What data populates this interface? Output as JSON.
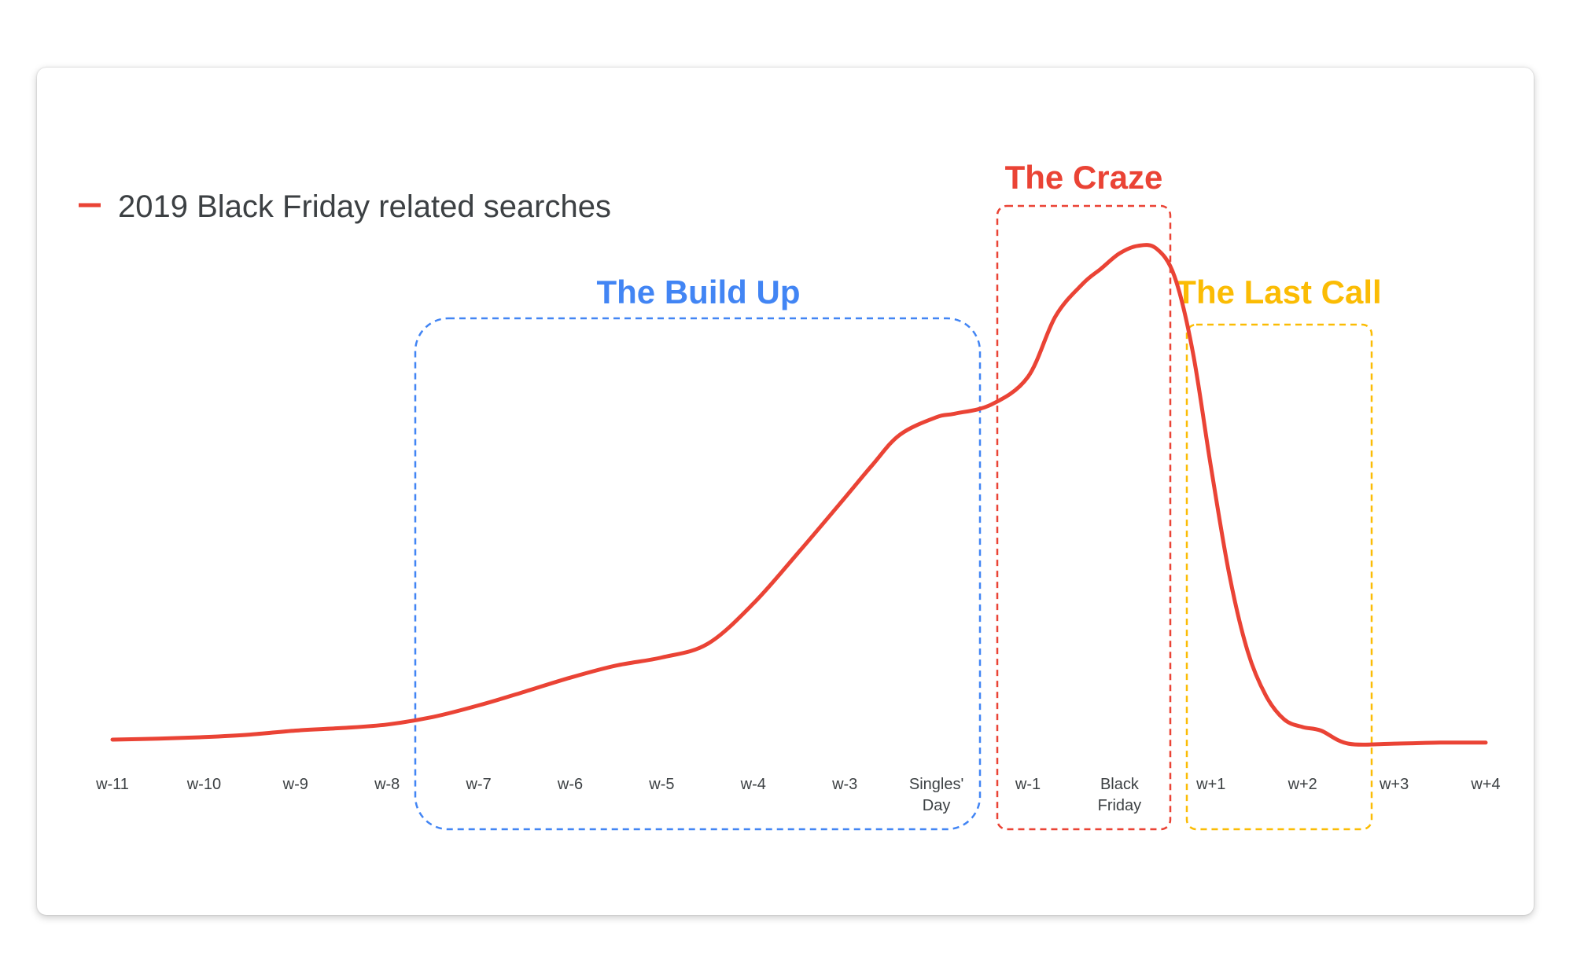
{
  "chart_data": {
    "type": "line",
    "title": "",
    "xlabel": "",
    "ylabel": "",
    "legend": {
      "placement": "top-left",
      "entries": [
        {
          "name": "2019 Black Friday related searches",
          "color": "#ea4335"
        }
      ]
    },
    "categories": [
      [
        "w-11"
      ],
      [
        "w-10"
      ],
      [
        "w-9"
      ],
      [
        "w-8"
      ],
      [
        "w-7"
      ],
      [
        "w-6"
      ],
      [
        "w-5"
      ],
      [
        "w-4"
      ],
      [
        "w-3"
      ],
      [
        "Singles'",
        "Day"
      ],
      [
        "w-1"
      ],
      [
        "Black",
        "Friday"
      ],
      [
        "w+1"
      ],
      [
        "w+2"
      ],
      [
        "w+3"
      ],
      [
        "w+4"
      ]
    ],
    "ylim": [
      0,
      100
    ],
    "series": [
      {
        "name": "2019 Black Friday related searches",
        "color": "#ea4335",
        "x": [
          0,
          0.5,
          1,
          1.5,
          2,
          2.5,
          3,
          3.5,
          4,
          4.5,
          5,
          5.5,
          6,
          6.5,
          7,
          7.5,
          8,
          8.3,
          8.6,
          9,
          9.2,
          9.6,
          10,
          10.3,
          10.6,
          10.8,
          11,
          11.2,
          11.4,
          11.6,
          11.8,
          12,
          12.2,
          12.4,
          12.6,
          12.8,
          13,
          13.2,
          13.5,
          14,
          14.5,
          15
        ],
        "values": [
          0,
          0.2,
          0.5,
          1,
          1.8,
          2.3,
          3,
          4.5,
          6.8,
          9.5,
          12.3,
          14.7,
          16.3,
          19,
          27,
          37.3,
          48,
          54.5,
          60.5,
          64,
          64.7,
          66.5,
          72,
          84,
          90.5,
          93.5,
          96.5,
          98,
          97.5,
          92,
          77,
          54,
          32.7,
          17.5,
          8.7,
          4,
          2.5,
          1.8,
          -0.8,
          -0.8,
          -0.6,
          -0.6
        ]
      }
    ],
    "zones": [
      {
        "label": "The Build Up",
        "from": 3.2,
        "to": 9.5,
        "color": "#4285f4"
      },
      {
        "label": "The Craze",
        "from": 9.7,
        "to": 11.55,
        "color": "#ea4335"
      },
      {
        "label": "The Last Call",
        "from": 11.75,
        "to": 13.75,
        "color": "#fbbc04"
      }
    ],
    "grid": false
  }
}
